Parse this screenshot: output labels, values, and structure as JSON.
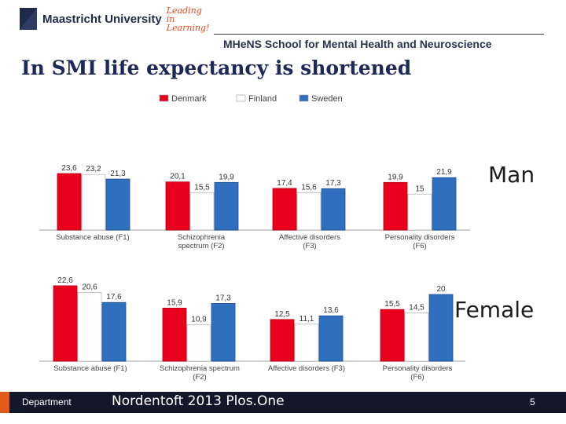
{
  "header": {
    "logo_name": "Maastricht University",
    "logo_tagline": "Leading in Learning!",
    "school": "MHeNS School for Mental Health and Neuroscience"
  },
  "slide": {
    "title": "In SMI life expectancy is shortened"
  },
  "legend": {
    "items": [
      {
        "label": "Denmark",
        "color": "#e8001c"
      },
      {
        "label": "Finland",
        "color": "#ffffff"
      },
      {
        "label": "Sweden",
        "color": "#2e6fc0"
      }
    ]
  },
  "chart_data": [
    {
      "type": "bar",
      "side_label": "Man",
      "categories": [
        "Substance abuse (F1)",
        "Schizophrenia spectrum (F2)",
        "Affective disorders (F3)",
        "Personality disorders (F6)"
      ],
      "series": [
        {
          "name": "Denmark",
          "values": [
            23.6,
            20.1,
            17.4,
            19.9
          ],
          "labels": [
            "23,6",
            "20,1",
            "17,4",
            "19,9"
          ]
        },
        {
          "name": "Finland",
          "values": [
            23.2,
            15.5,
            15.6,
            15
          ],
          "labels": [
            "23,2",
            "15,5",
            "15,6",
            "15"
          ]
        },
        {
          "name": "Sweden",
          "values": [
            21.3,
            19.9,
            17.3,
            21.9
          ],
          "labels": [
            "21,3",
            "19,9",
            "17,3",
            "21,9"
          ]
        }
      ]
    },
    {
      "type": "bar",
      "side_label": "Female",
      "categories": [
        "Substance abuse (F1)",
        "Schizophrenia spectrum (F2)",
        "Affective disorders (F3)",
        "Personality disorders (F6)"
      ],
      "series": [
        {
          "name": "Denmark",
          "values": [
            22.6,
            15.9,
            12.5,
            15.5
          ],
          "labels": [
            "22,6",
            "15,9",
            "12,5",
            "15,5"
          ]
        },
        {
          "name": "Finland",
          "values": [
            20.6,
            10.9,
            11.1,
            14.5
          ],
          "labels": [
            "20,6",
            "10,9",
            "11,1",
            "14,5"
          ]
        },
        {
          "name": "Sweden",
          "values": [
            17.6,
            17.3,
            13.6,
            20
          ],
          "labels": [
            "17,6",
            "17,3",
            "13,6",
            "20"
          ]
        }
      ]
    }
  ],
  "footer": {
    "department": "Department",
    "citation": "Nordentoft 2013 Plos.One",
    "page": "5"
  }
}
